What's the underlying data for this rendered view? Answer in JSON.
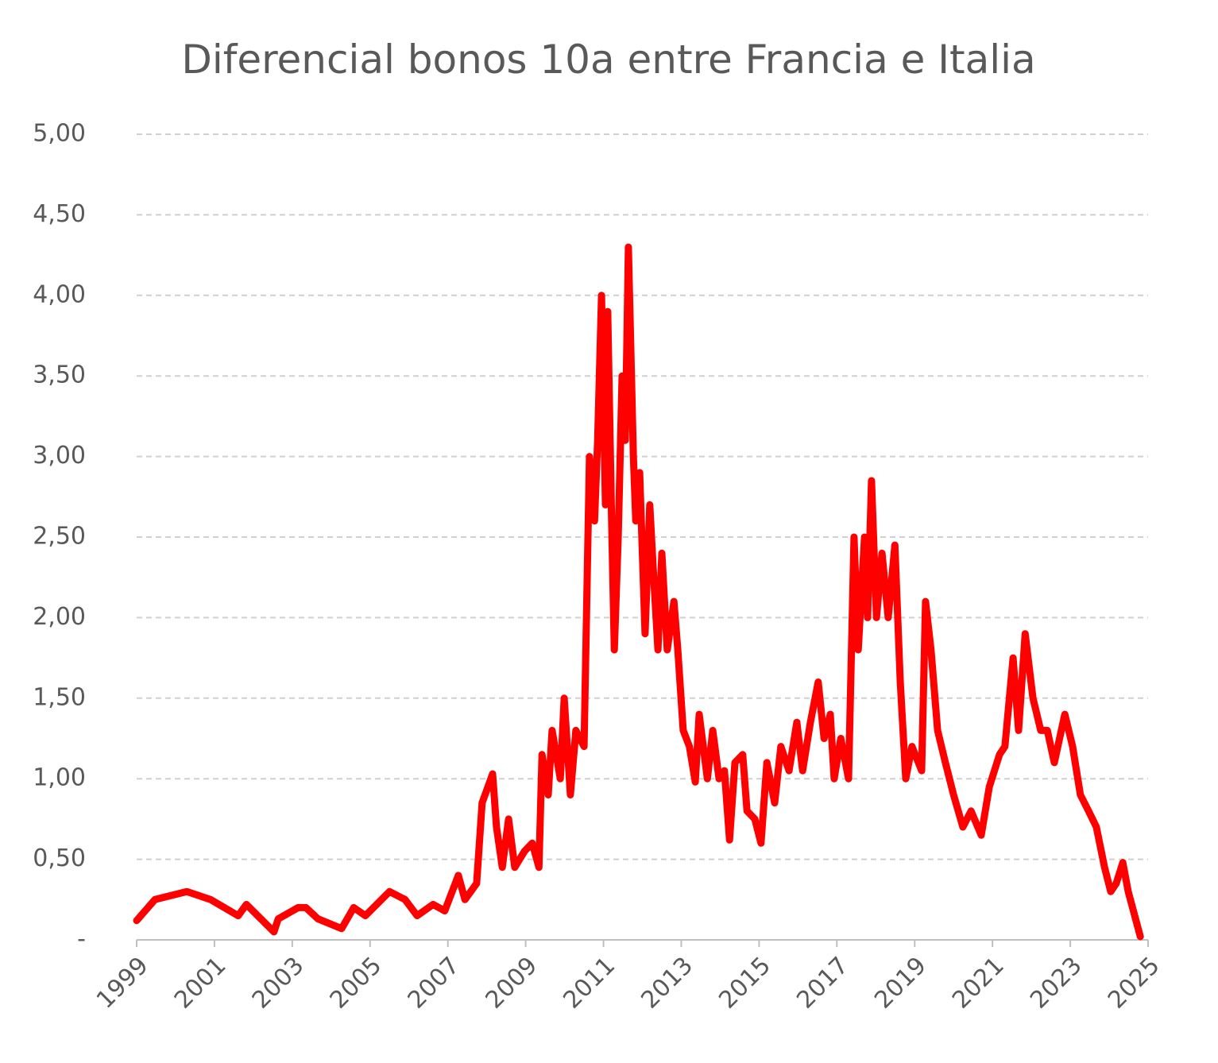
{
  "chart_data": {
    "type": "line",
    "title": "Diferencial bonos 10a entre Francia e Italia",
    "x": [
      1999.0,
      1999.47,
      2000.29,
      2000.9,
      2001.61,
      2001.82,
      2002.53,
      2002.64,
      2003.15,
      2003.35,
      2003.66,
      2004.27,
      2004.58,
      2004.88,
      2005.5,
      2005.9,
      2006.21,
      2006.62,
      2006.92,
      2007.27,
      2007.44,
      2007.74,
      2007.88,
      2008.15,
      2008.25,
      2008.4,
      2008.56,
      2008.72,
      2008.97,
      2009.17,
      2009.34,
      2009.42,
      2009.58,
      2009.68,
      2009.89,
      2009.99,
      2010.15,
      2010.29,
      2010.5,
      2010.64,
      2010.77,
      2010.85,
      2010.95,
      2011.05,
      2011.11,
      2011.21,
      2011.28,
      2011.38,
      2011.48,
      2011.56,
      2011.64,
      2011.77,
      2011.83,
      2011.93,
      2012.07,
      2012.19,
      2012.28,
      2012.4,
      2012.5,
      2012.64,
      2012.81,
      2012.91,
      2013.05,
      2013.21,
      2013.36,
      2013.46,
      2013.67,
      2013.81,
      2013.97,
      2014.11,
      2014.24,
      2014.38,
      2014.58,
      2014.69,
      2014.89,
      2015.05,
      2015.2,
      2015.4,
      2015.56,
      2015.77,
      2015.97,
      2016.12,
      2016.32,
      2016.52,
      2016.67,
      2016.83,
      2016.93,
      2017.1,
      2017.3,
      2017.44,
      2017.55,
      2017.71,
      2017.79,
      2017.89,
      2018.02,
      2018.16,
      2018.32,
      2018.49,
      2018.63,
      2018.77,
      2018.93,
      2019.18,
      2019.28,
      2019.42,
      2019.59,
      2019.79,
      2020.0,
      2020.24,
      2020.45,
      2020.71,
      2020.92,
      2021.18,
      2021.32,
      2021.53,
      2021.67,
      2021.84,
      2022.04,
      2022.24,
      2022.41,
      2022.59,
      2022.86,
      2023.06,
      2023.26,
      2023.47,
      2023.67,
      2023.88,
      2024.04,
      2024.18,
      2024.35,
      2024.49,
      2024.69,
      2024.8
    ],
    "series": [
      {
        "name": "Diferencial",
        "color": "#ff0000",
        "values": [
          0.12,
          0.25,
          0.3,
          0.25,
          0.15,
          0.22,
          0.05,
          0.13,
          0.2,
          0.2,
          0.13,
          0.07,
          0.2,
          0.15,
          0.3,
          0.25,
          0.15,
          0.22,
          0.18,
          0.4,
          0.25,
          0.35,
          0.85,
          1.03,
          0.7,
          0.45,
          0.75,
          0.45,
          0.55,
          0.6,
          0.45,
          1.15,
          0.9,
          1.3,
          1.0,
          1.5,
          0.9,
          1.3,
          1.2,
          3.0,
          2.6,
          3.1,
          4.0,
          2.7,
          3.9,
          2.6,
          1.8,
          2.5,
          3.5,
          3.1,
          4.3,
          3.0,
          2.6,
          2.9,
          1.9,
          2.7,
          2.3,
          1.8,
          2.4,
          1.8,
          2.1,
          1.8,
          1.3,
          1.2,
          0.98,
          1.4,
          1.0,
          1.3,
          1.0,
          1.05,
          0.62,
          1.1,
          1.15,
          0.8,
          0.75,
          0.6,
          1.1,
          0.85,
          1.2,
          1.05,
          1.35,
          1.05,
          1.35,
          1.6,
          1.25,
          1.4,
          1.0,
          1.25,
          1.0,
          2.5,
          1.8,
          2.5,
          2.0,
          2.85,
          2.0,
          2.4,
          2.0,
          2.45,
          1.6,
          1.0,
          1.2,
          1.05,
          2.1,
          1.8,
          1.3,
          1.1,
          0.9,
          0.7,
          0.8,
          0.65,
          0.95,
          1.15,
          1.2,
          1.75,
          1.3,
          1.9,
          1.5,
          1.3,
          1.3,
          1.1,
          1.4,
          1.2,
          0.9,
          0.8,
          0.7,
          0.45,
          0.3,
          0.35,
          0.48,
          0.3,
          0.12,
          0.02
        ]
      }
    ],
    "xlim": [
      1999,
      2025
    ],
    "xticks": [
      1999,
      2001,
      2003,
      2005,
      2007,
      2009,
      2011,
      2013,
      2015,
      2017,
      2019,
      2021,
      2023,
      2025
    ],
    "ylim": [
      0,
      5
    ],
    "yticks": [
      {
        "value": 0,
        "label": "-"
      },
      {
        "value": 0.5,
        "label": "0,50"
      },
      {
        "value": 1,
        "label": "1,00"
      },
      {
        "value": 1.5,
        "label": "1,50"
      },
      {
        "value": 2,
        "label": "2,00"
      },
      {
        "value": 2.5,
        "label": "2,50"
      },
      {
        "value": 3,
        "label": "3,00"
      },
      {
        "value": 3.5,
        "label": "3,50"
      },
      {
        "value": 4,
        "label": "4,00"
      },
      {
        "value": 4.5,
        "label": "4,50"
      },
      {
        "value": 5,
        "label": "5,00"
      }
    ],
    "grid": true
  }
}
